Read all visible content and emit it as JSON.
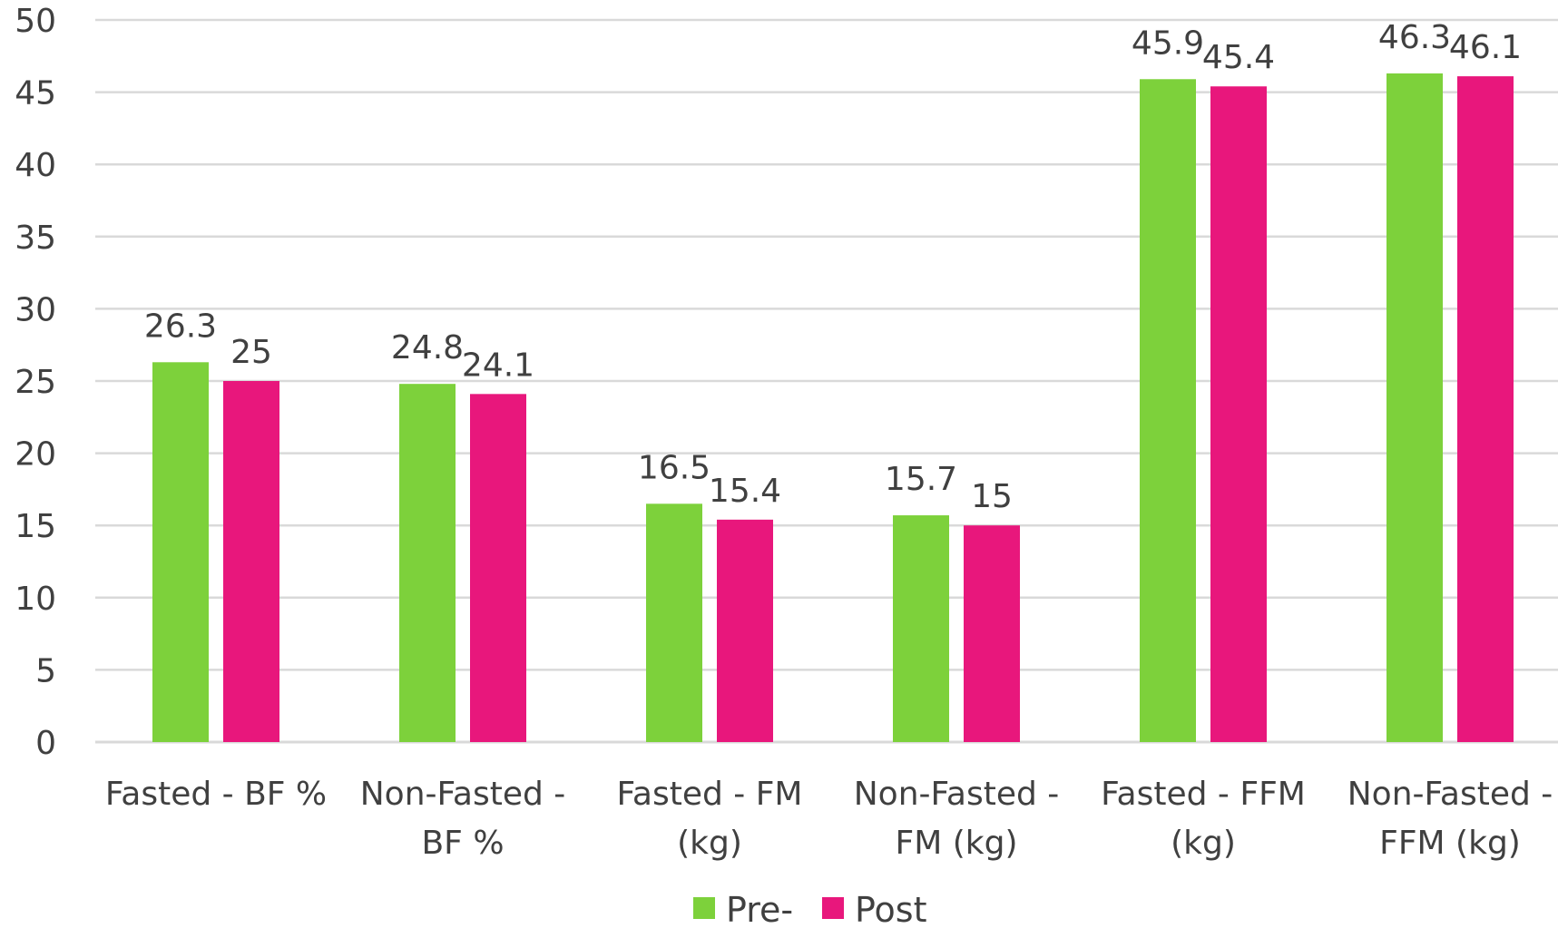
{
  "chart_data": {
    "type": "bar",
    "title": "",
    "xlabel": "",
    "ylabel": "",
    "ylim": [
      0,
      50
    ],
    "yticks": [
      0,
      5,
      10,
      15,
      20,
      25,
      30,
      35,
      40,
      45,
      50
    ],
    "grid": true,
    "legend_position": "bottom-center",
    "categories": [
      [
        "Fasted - BF %"
      ],
      [
        "Non-Fasted -",
        "BF %"
      ],
      [
        "Fasted - FM",
        "(kg)"
      ],
      [
        "Non-Fasted -",
        "FM (kg)"
      ],
      [
        "Fasted - FFM",
        "(kg)"
      ],
      [
        "Non-Fasted -",
        "FFM (kg)"
      ]
    ],
    "series": [
      {
        "name": "Pre-",
        "color": "#7dd13b",
        "values": [
          26.3,
          24.8,
          16.5,
          15.7,
          45.9,
          46.3
        ],
        "labels": [
          "26.3",
          "24.8",
          "16.5",
          "15.7",
          "45.9",
          "46.3"
        ]
      },
      {
        "name": "Post",
        "color": "#e8177c",
        "values": [
          25,
          24.1,
          15.4,
          15,
          45.4,
          46.1
        ],
        "labels": [
          "25",
          "24.1",
          "15.4",
          "15",
          "45.4",
          "46.1"
        ]
      }
    ]
  }
}
